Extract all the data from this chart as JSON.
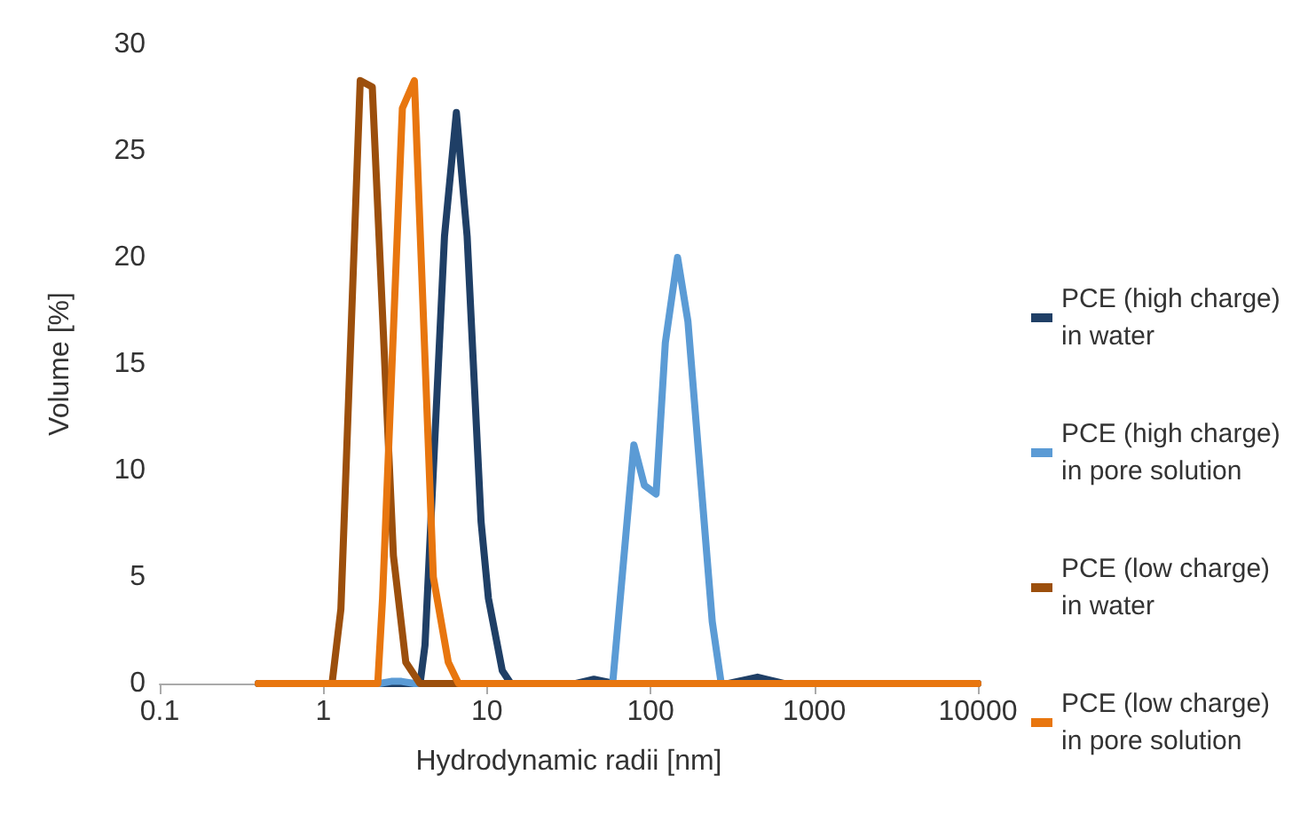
{
  "chart_data": {
    "type": "line",
    "xlabel": "Hydrodynamic radii [nm]",
    "ylabel": "Volume [%]",
    "log": "x",
    "xlim": [
      0.1,
      10000
    ],
    "xticks": [
      0.1,
      1,
      10,
      100,
      1000,
      10000
    ],
    "ylim": [
      0,
      30
    ],
    "yticks": [
      0,
      5,
      10,
      15,
      20,
      25,
      30
    ],
    "grid": false,
    "legend": "right",
    "marker": "none",
    "line_style": "solid",
    "series": [
      {
        "name": "PCE (high charge)\nin water",
        "color": "#1f3f66",
        "x": [
          0.4,
          3.9,
          4.18,
          5.5,
          6.5,
          7.56,
          9.2,
          10.2,
          12.4,
          14,
          35,
          45,
          60,
          300,
          450,
          650,
          10000
        ],
        "values": [
          0,
          0,
          1.8,
          21,
          26.8,
          21,
          7.6,
          4,
          0.6,
          0,
          0,
          0.2,
          0,
          0,
          0.3,
          0,
          0
        ]
      },
      {
        "name": "PCE (high charge)\nin pore solution",
        "color": "#5b9bd5",
        "x": [
          0.4,
          2.2,
          2.6,
          3.0,
          3.6,
          58.6,
          79,
          91.6,
          108,
          123,
          146,
          169,
          238,
          270,
          10000
        ],
        "values": [
          0,
          0,
          0.1,
          0.1,
          0,
          0,
          11.2,
          9.3,
          8.9,
          16,
          20,
          17,
          2.9,
          0,
          0
        ]
      },
      {
        "name": "PCE (low charge)\nin water",
        "color": "#9c4f0c",
        "x": [
          0.4,
          1.13,
          1.28,
          1.68,
          1.99,
          2.68,
          3.19,
          3.89,
          10000
        ],
        "values": [
          0,
          0,
          3.5,
          28.3,
          28,
          6,
          1,
          0,
          0
        ]
      },
      {
        "name": "PCE (low charge)\nin pore solution",
        "color": "#e8760f",
        "x": [
          0.4,
          2.15,
          2.3,
          3.04,
          3.6,
          4.7,
          5.8,
          6.7,
          10000
        ],
        "values": [
          0,
          0,
          4,
          27,
          28.3,
          5,
          1,
          0,
          0
        ]
      }
    ]
  }
}
